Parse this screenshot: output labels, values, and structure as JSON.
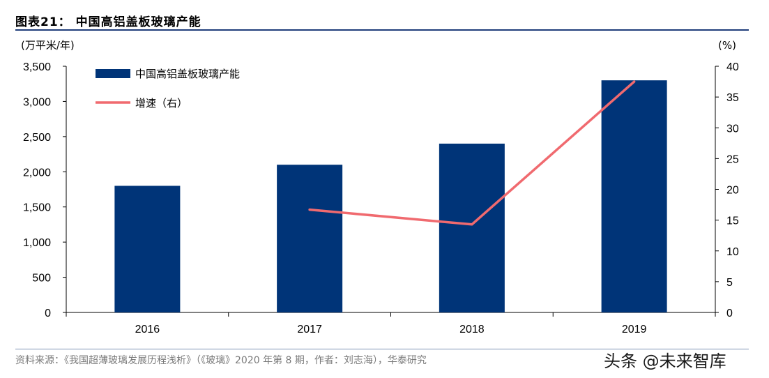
{
  "figure": {
    "title": "图表21：   中国高铝盖板玻璃产能",
    "source": "资料来源：《我国超薄玻璃发展历程浅析》（《玻璃》2020 年第 8 期，作者：刘志海），华泰研究",
    "watermark": "头条 @未来智库"
  },
  "chart_data": {
    "type": "bar",
    "categories": [
      "2016",
      "2017",
      "2018",
      "2019"
    ],
    "series": [
      {
        "name": "中国高铝盖板玻璃产能",
        "type": "bar",
        "axis": "left",
        "color": "#003478",
        "values": [
          1800,
          2100,
          2400,
          3300
        ]
      },
      {
        "name": "增速（右）",
        "type": "line",
        "axis": "right",
        "color": "#f06a6f",
        "values": [
          null,
          16.7,
          14.3,
          37.5
        ]
      }
    ],
    "y_left": {
      "label": "(万平米/年)",
      "ylim": [
        0,
        3500
      ],
      "ticks": [
        "0",
        "500",
        "1,000",
        "1,500",
        "2,000",
        "2,500",
        "3,000",
        "3,500"
      ]
    },
    "y_right": {
      "label": "(%)",
      "ylim": [
        0,
        40
      ],
      "ticks": [
        "0",
        "5",
        "10",
        "15",
        "20",
        "25",
        "30",
        "35",
        "40"
      ]
    },
    "grid": false,
    "legend_position": "top-left"
  }
}
